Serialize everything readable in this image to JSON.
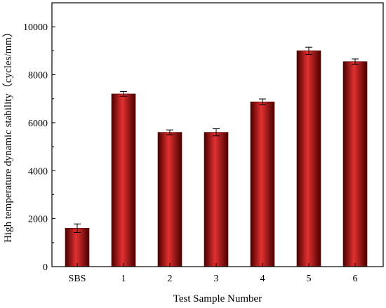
{
  "chart_data": {
    "type": "bar",
    "title": "",
    "xlabel": "Test Sample Number",
    "ylabel": "High temperature dynamic stability（cycles/mm）",
    "categories": [
      "SBS",
      "1",
      "2",
      "3",
      "4",
      "5",
      "6"
    ],
    "values": [
      1600,
      7200,
      5600,
      5600,
      6870,
      9000,
      8550
    ],
    "errors": [
      180,
      100,
      100,
      150,
      120,
      150,
      110
    ],
    "ylim": [
      0,
      11000
    ],
    "yticks": [
      0,
      2000,
      4000,
      6000,
      8000,
      10000
    ],
    "grid": false,
    "legend": "none",
    "colors": {
      "bar_dark": "#4a0000",
      "bar_mid": "#b01010",
      "bar_light": "#e23030",
      "axis": "#000000"
    }
  }
}
